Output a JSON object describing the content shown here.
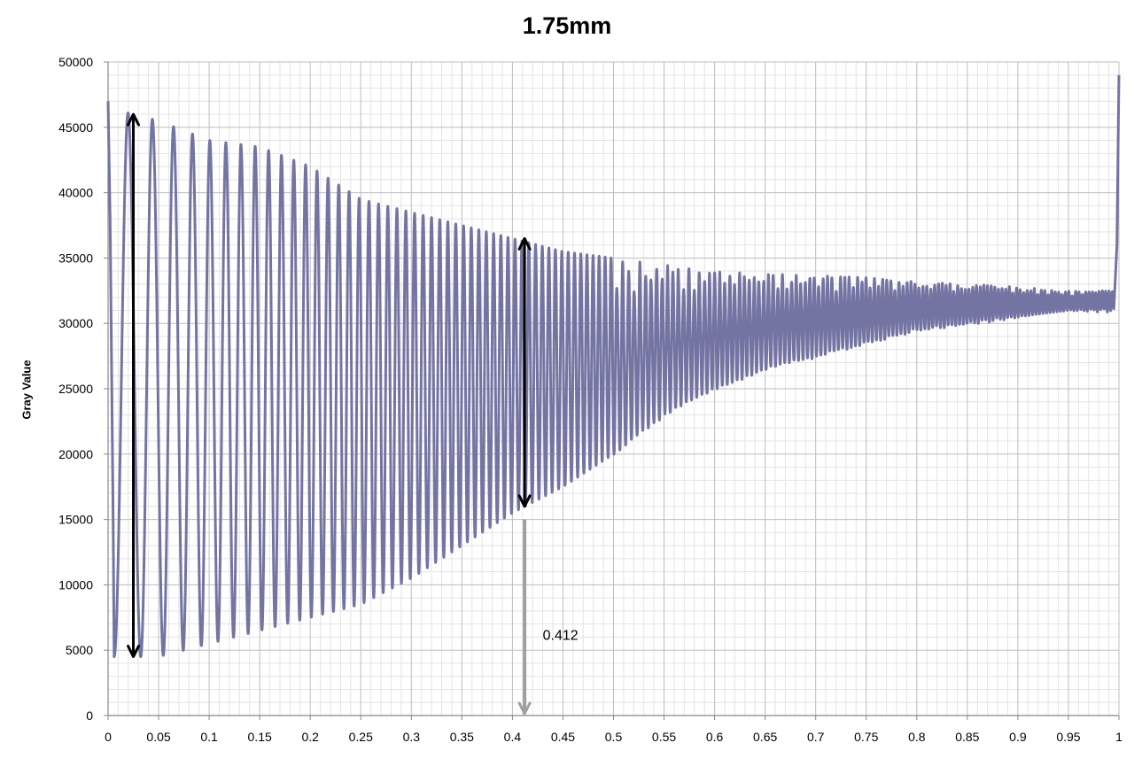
{
  "chart_data": {
    "type": "line",
    "title": "1.75mm",
    "xlabel": "",
    "ylabel": "Gray Value",
    "xlim": [
      0,
      1
    ],
    "ylim": [
      0,
      50000
    ],
    "x_ticks": [
      "0",
      "0.05",
      "0.1",
      "0.15",
      "0.2",
      "0.25",
      "0.3",
      "0.35",
      "0.4",
      "0.45",
      "0.5",
      "0.55",
      "0.6",
      "0.65",
      "0.7",
      "0.75",
      "0.8",
      "0.85",
      "0.9",
      "0.95",
      "1"
    ],
    "y_ticks": [
      "0",
      "5000",
      "10000",
      "15000",
      "20000",
      "25000",
      "30000",
      "35000",
      "40000",
      "45000",
      "50000"
    ],
    "grid": "major and minor",
    "legend": "none",
    "series_color": "#7474a3",
    "series": [
      {
        "description": "oscillating gray-value profile (chirp): period shrinks along x",
        "maxima": {
          "x": [
            0,
            0.05,
            0.1,
            0.15,
            0.2,
            0.25,
            0.3,
            0.35,
            0.4,
            0.45,
            0.5,
            0.55,
            0.6,
            0.65,
            0.7,
            0.75,
            0.8,
            0.85,
            0.9,
            0.95,
            0.995
          ],
          "y": [
            46500,
            45500,
            44000,
            43500,
            42000,
            39500,
            38500,
            37500,
            36500,
            35500,
            35000,
            34500,
            34000,
            33800,
            33700,
            33500,
            33200,
            33000,
            32800,
            32500,
            32500
          ]
        },
        "minima": {
          "x": [
            0,
            0.05,
            0.1,
            0.15,
            0.2,
            0.25,
            0.3,
            0.35,
            0.4,
            0.45,
            0.5,
            0.55,
            0.6,
            0.65,
            0.7,
            0.75,
            0.8,
            0.85,
            0.9,
            0.95,
            0.995
          ],
          "y": [
            4500,
            4500,
            5500,
            6500,
            7500,
            8500,
            10500,
            13000,
            15500,
            17500,
            20000,
            23000,
            25000,
            26500,
            27500,
            28500,
            29500,
            30000,
            30500,
            31000,
            31000
          ]
        },
        "end_spikes": {
          "start_y": 47000,
          "end_y": 49000
        },
        "cycles_approx": 170
      }
    ],
    "annotations": [
      {
        "type": "double-arrow",
        "color": "#000000",
        "x": 0.025,
        "y_from": 4500,
        "y_to": 46000
      },
      {
        "type": "double-arrow",
        "color": "#000000",
        "x": 0.412,
        "y_from": 16000,
        "y_to": 36500
      },
      {
        "type": "arrow",
        "color": "#a0a0a0",
        "x": 0.412,
        "y_from": 15000,
        "y_to": 0
      },
      {
        "type": "label",
        "text": "0.412",
        "x": 0.43,
        "y": 5800
      }
    ]
  }
}
